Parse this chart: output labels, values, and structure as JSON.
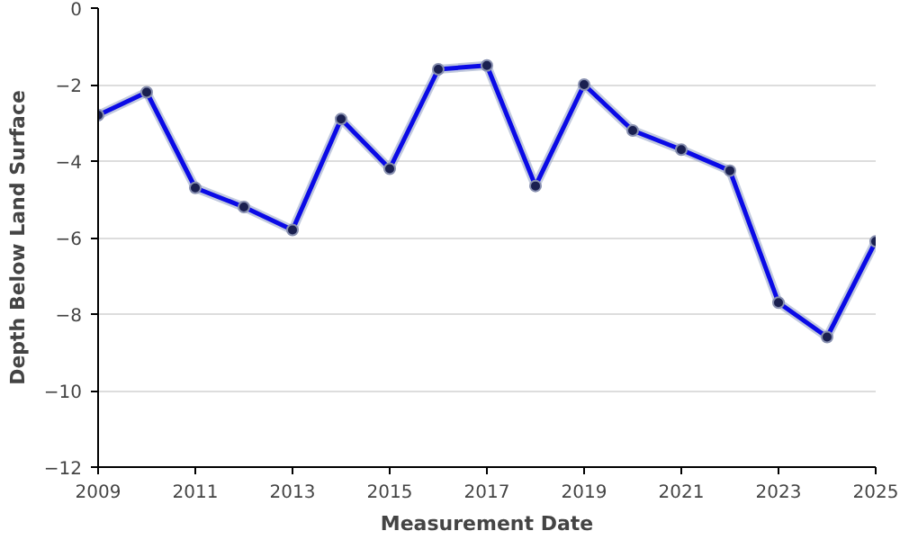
{
  "chart_data": {
    "type": "line",
    "xlabel": "Measurement Date",
    "ylabel": "Depth Below Land Surface",
    "x": [
      2009,
      2010,
      2011,
      2012,
      2013,
      2014,
      2015,
      2016,
      2017,
      2018,
      2019,
      2020,
      2021,
      2022,
      2023,
      2024,
      2025
    ],
    "series": [
      {
        "color": "#0a0ae6",
        "values": [
          -2.8,
          -2.2,
          -4.7,
          -5.2,
          -5.8,
          -2.9,
          -4.2,
          -1.6,
          -1.5,
          -4.65,
          -2.0,
          -3.2,
          -3.7,
          -4.25,
          -7.7,
          -8.6,
          -6.1
        ]
      }
    ],
    "xlim": [
      2009,
      2025
    ],
    "xticks": [
      2009,
      2011,
      2013,
      2015,
      2017,
      2019,
      2021,
      2023,
      2025
    ],
    "ylim": [
      -12,
      0
    ],
    "yticks": [
      0,
      -2,
      -4,
      -6,
      -8,
      -10,
      -12
    ],
    "grid": "y",
    "marker": "circle",
    "line_style": "solid"
  }
}
